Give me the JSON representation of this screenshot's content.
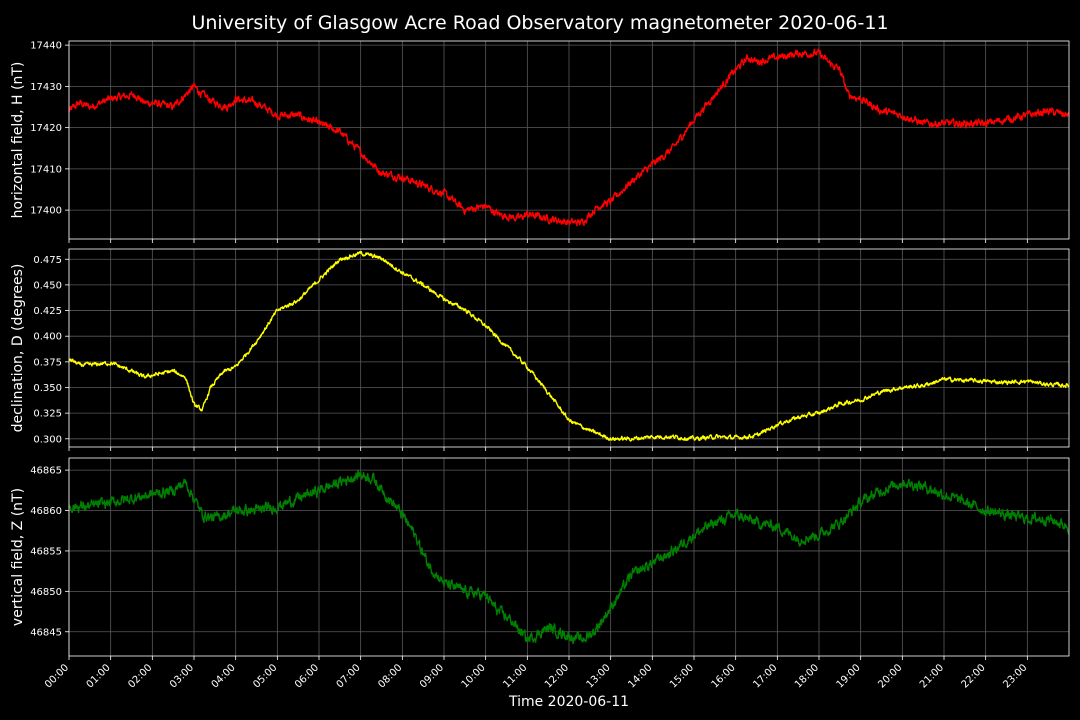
{
  "chart_data": {
    "type": "line",
    "title": "University of Glasgow Acre Road Observatory magnetometer 2020-06-11",
    "xlabel": "Time 2020-06-11",
    "x_unit": "hour of day",
    "xlim": [
      0,
      24
    ],
    "xtick_labels": [
      "00:00",
      "01:00",
      "02:00",
      "03:00",
      "04:00",
      "05:00",
      "06:00",
      "07:00",
      "08:00",
      "09:00",
      "10:00",
      "11:00",
      "12:00",
      "13:00",
      "14:00",
      "15:00",
      "16:00",
      "17:00",
      "18:00",
      "19:00",
      "20:00",
      "21:00",
      "22:00",
      "23:00"
    ],
    "grid": true,
    "panels": [
      {
        "ylabel": "horizontal field, H (nT)",
        "ylim": [
          17393,
          17441
        ],
        "yticks": [
          17400,
          17410,
          17420,
          17430,
          17440
        ],
        "tick_decimals": 0,
        "color": "#ff0000",
        "noise": 0.7,
        "x": [
          0,
          0.25,
          0.5,
          1,
          1.6,
          1.8,
          2,
          2.5,
          2.8,
          3,
          3.2,
          3.5,
          3.8,
          4,
          4.5,
          5,
          5.5,
          6,
          6.5,
          7,
          7.5,
          8,
          8.5,
          9,
          9.5,
          10,
          10.3,
          10.8,
          11,
          11.5,
          12,
          12.3,
          12.7,
          13,
          13.3,
          13.5,
          14,
          14.5,
          15,
          15.5,
          16,
          16.3,
          16.5,
          17,
          17.5,
          18,
          18.2,
          18.5,
          18.7,
          19,
          19.5,
          20,
          20.5,
          21,
          21.5,
          22,
          22.5,
          23,
          23.5,
          24
        ],
        "y": [
          17424,
          17426,
          17425,
          17427,
          17428,
          17426,
          17426,
          17425,
          17428,
          17430,
          17428,
          17426,
          17425,
          17427,
          17426,
          17423,
          17423,
          17421,
          17419,
          17414,
          17409,
          17408,
          17406,
          17404,
          17400,
          17401,
          17399,
          17398,
          17399,
          17398,
          17397,
          17397,
          17401,
          17402,
          17405,
          17407,
          17411,
          17415,
          17422,
          17428,
          17434,
          17437,
          17436,
          17437,
          17438,
          17438,
          17436,
          17434,
          17428,
          17427,
          17424,
          17423,
          17421,
          17421,
          17421,
          17421,
          17422,
          17423,
          17424,
          17423
        ]
      },
      {
        "ylabel": "declination, D (degrees)",
        "ylim": [
          0.292,
          0.485
        ],
        "yticks": [
          0.3,
          0.325,
          0.35,
          0.375,
          0.4,
          0.425,
          0.45,
          0.475
        ],
        "tick_decimals": 3,
        "color": "#ffff00",
        "noise": 0.0015,
        "x": [
          0,
          0.25,
          0.5,
          1,
          1.5,
          1.8,
          2,
          2.5,
          2.8,
          3,
          3.2,
          3.4,
          3.7,
          4,
          4.5,
          5,
          5.5,
          6,
          6.5,
          7,
          7.5,
          8,
          8.5,
          9,
          9.5,
          10,
          10.5,
          11,
          11.5,
          12,
          12.5,
          13,
          13.5,
          14,
          14.5,
          15,
          15.5,
          16,
          16.5,
          17,
          17.5,
          18,
          18.5,
          19,
          19.5,
          20,
          20.5,
          21,
          21.5,
          22,
          22.5,
          23,
          23.5,
          24
        ],
        "y": [
          0.378,
          0.372,
          0.372,
          0.374,
          0.366,
          0.36,
          0.362,
          0.366,
          0.36,
          0.333,
          0.328,
          0.35,
          0.365,
          0.37,
          0.395,
          0.425,
          0.435,
          0.455,
          0.475,
          0.481,
          0.476,
          0.462,
          0.45,
          0.436,
          0.426,
          0.41,
          0.39,
          0.37,
          0.345,
          0.318,
          0.308,
          0.3,
          0.3,
          0.302,
          0.302,
          0.3,
          0.302,
          0.301,
          0.303,
          0.314,
          0.321,
          0.325,
          0.334,
          0.338,
          0.346,
          0.35,
          0.352,
          0.358,
          0.357,
          0.356,
          0.355,
          0.356,
          0.353,
          0.352
        ]
      },
      {
        "ylabel": "vertical field, Z (nT)",
        "ylim": [
          46842,
          46866.5
        ],
        "yticks": [
          46845,
          46850,
          46855,
          46860,
          46865
        ],
        "tick_decimals": 0,
        "color": "#008000",
        "noise": 0.5,
        "x": [
          0,
          0.5,
          1,
          1.5,
          2,
          2.5,
          2.8,
          3,
          3.2,
          3.5,
          4,
          4.5,
          5,
          5.5,
          6,
          6.5,
          7,
          7.3,
          7.6,
          8,
          8.3,
          8.6,
          9,
          9.5,
          10,
          10.3,
          10.6,
          11,
          11.5,
          12,
          12.3,
          12.6,
          13,
          13.5,
          14,
          14.5,
          15,
          15.5,
          16,
          16.5,
          17,
          17.5,
          18,
          18.5,
          19,
          19.5,
          20,
          20.5,
          21,
          21.5,
          22,
          22.5,
          23,
          23.5,
          24
        ],
        "y": [
          46860.5,
          46860.5,
          46861,
          46861.5,
          46862,
          46862.5,
          46863.5,
          46861.5,
          46859.5,
          46859,
          46860,
          46860,
          46860.5,
          46861.5,
          46862.5,
          46863.5,
          46864.5,
          46864,
          46862,
          46859.5,
          46857,
          46853.5,
          46851,
          46850,
          46849.5,
          46847.5,
          46846.5,
          46844,
          46845.5,
          46844.5,
          46844,
          46845,
          46848,
          46852,
          46853.5,
          46855,
          46857,
          46858.5,
          46859.5,
          46858.5,
          46858,
          46856.5,
          46857,
          46858.5,
          46861,
          46862.5,
          46863.5,
          46863,
          46862,
          46861,
          46860,
          46859.5,
          46859,
          46859,
          46858
        ]
      }
    ]
  }
}
